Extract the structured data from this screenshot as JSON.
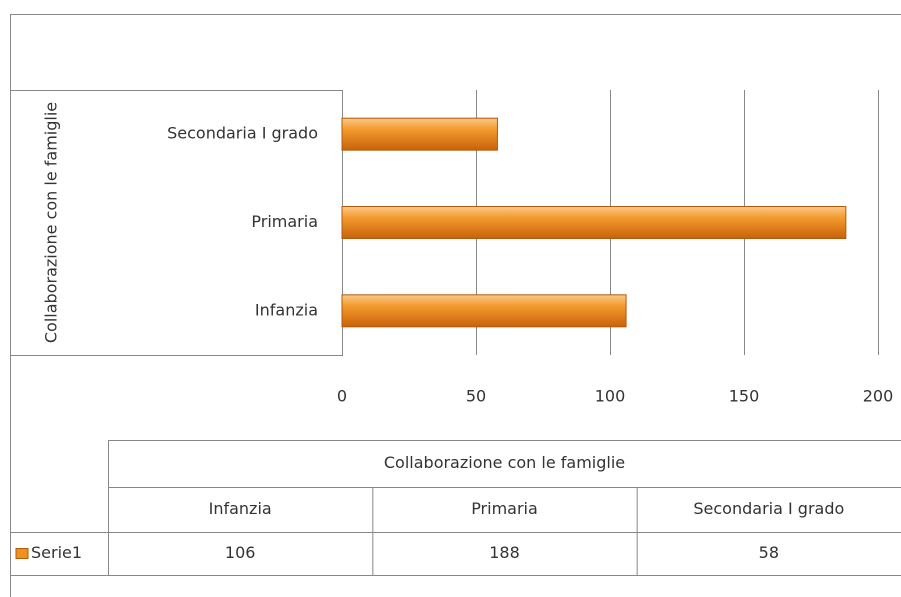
{
  "chart_data": {
    "type": "bar",
    "orientation": "horizontal",
    "axis_title": "Collaborazione con le famiglie",
    "categories": [
      "Infanzia",
      "Primaria",
      "Secondaria I grado"
    ],
    "series": [
      {
        "name": "Serie1",
        "color": "#f0901e",
        "values": [
          106,
          188,
          58
        ]
      }
    ],
    "xlim": [
      0,
      200
    ],
    "xticks": [
      0,
      50,
      100,
      150,
      200
    ],
    "grid": true,
    "data_table": true
  }
}
